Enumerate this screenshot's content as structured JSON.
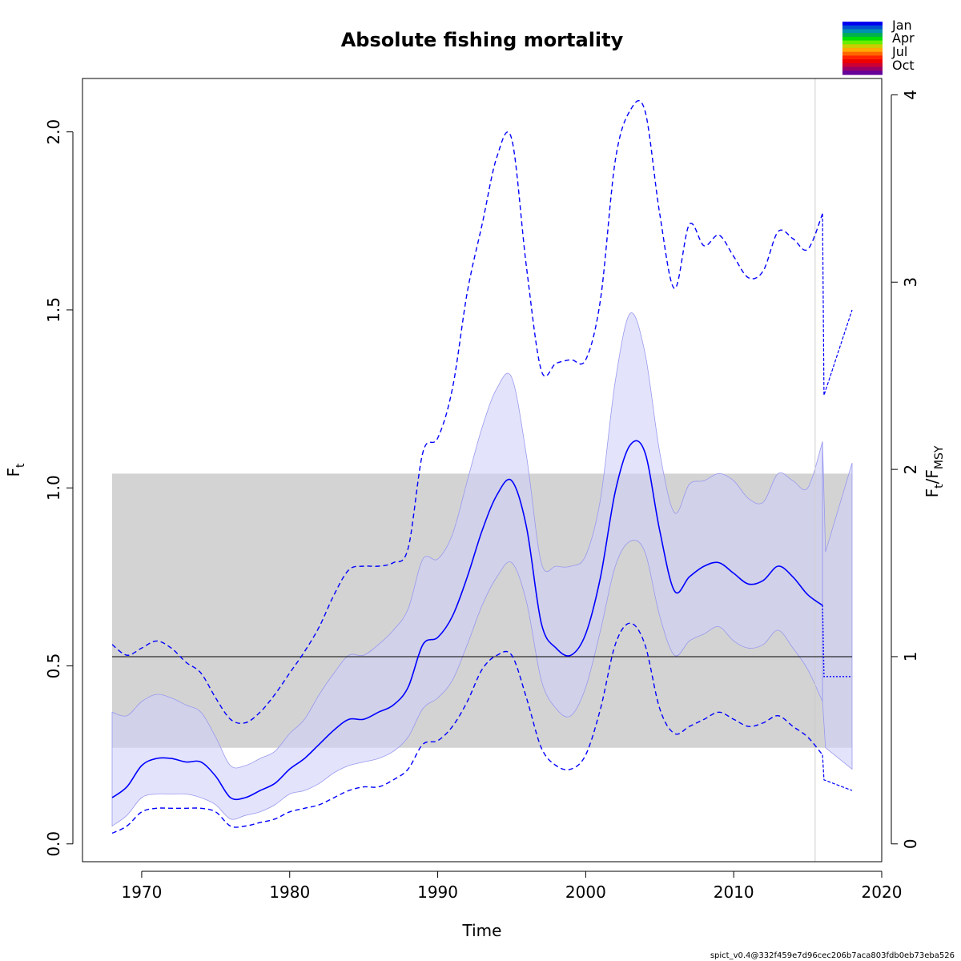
{
  "chart_data": {
    "type": "line",
    "title": "Absolute fishing mortality",
    "xlabel": "Time",
    "ylabel_main": "F",
    "ylabel_main_sub": "t",
    "ylabel_right_num": "F",
    "ylabel_right_num_sub": "t",
    "ylabel_right_sep": "/",
    "ylabel_right_den": "F",
    "ylabel_right_den_sub": "MSY",
    "xlim": [
      1966,
      2020
    ],
    "ylim": [
      -0.05,
      2.15
    ],
    "x_ticks": [
      1970,
      1980,
      1990,
      2000,
      2010,
      2020
    ],
    "y_ticks": [
      0.0,
      0.5,
      1.0,
      1.5,
      2.0
    ],
    "y_tick_labels": [
      "0.0",
      "0.5",
      "1.0",
      "1.5",
      "2.0"
    ],
    "right_ticks": [
      0,
      1,
      2,
      3,
      4
    ],
    "right_tick_labels": [
      "0",
      "1",
      "2",
      "3",
      "4"
    ],
    "fmsy": 0.526,
    "fmsy_band": {
      "x_start": 1968,
      "x_end": 2018,
      "lower": 0.27,
      "upper": 1.04
    },
    "last_obs_time": 2015.5,
    "colors": {
      "estimate": "#0000ff",
      "ci_fill": "#d0d0fa",
      "fmsy_band": "#d3d3d3",
      "fmsy_line": "#000000",
      "vline": "#cccccc"
    },
    "legend": {
      "labels": [
        "Jan",
        "Apr",
        "Jul",
        "Oct"
      ],
      "colors": [
        "#0000ee",
        "#0050d0",
        "#0090b0",
        "#00b050",
        "#00dd00",
        "#66ee00",
        "#cccc00",
        "#ffaa00",
        "#ff6600",
        "#ff2200",
        "#ee0000",
        "#cc0033",
        "#990066",
        "#660099"
      ]
    },
    "series": [
      {
        "name": "F estimate",
        "x": [
          1968,
          1969,
          1970,
          1971,
          1972,
          1973,
          1974,
          1975,
          1976,
          1977,
          1978,
          1979,
          1980,
          1981,
          1982,
          1983,
          1984,
          1985,
          1986,
          1987,
          1988,
          1989,
          1990,
          1991,
          1992,
          1993,
          1994,
          1995,
          1996,
          1997,
          1998,
          1999,
          2000,
          2001,
          2002,
          2003,
          2004,
          2005,
          2006,
          2007,
          2008,
          2009,
          2010,
          2011,
          2012,
          2013,
          2014,
          2015,
          2016
        ],
        "y": [
          0.13,
          0.16,
          0.22,
          0.24,
          0.24,
          0.23,
          0.23,
          0.19,
          0.13,
          0.13,
          0.15,
          0.17,
          0.21,
          0.24,
          0.28,
          0.32,
          0.35,
          0.35,
          0.37,
          0.39,
          0.44,
          0.56,
          0.58,
          0.64,
          0.75,
          0.88,
          0.98,
          1.02,
          0.89,
          0.62,
          0.55,
          0.53,
          0.59,
          0.75,
          0.99,
          1.12,
          1.1,
          0.88,
          0.71,
          0.75,
          0.78,
          0.79,
          0.76,
          0.73,
          0.74,
          0.78,
          0.75,
          0.7,
          0.67
        ]
      },
      {
        "name": "95% CI lower",
        "x": [
          1968,
          1969,
          1970,
          1971,
          1972,
          1973,
          1974,
          1975,
          1976,
          1977,
          1978,
          1979,
          1980,
          1981,
          1982,
          1983,
          1984,
          1985,
          1986,
          1987,
          1988,
          1989,
          1990,
          1991,
          1992,
          1993,
          1994,
          1995,
          1996,
          1997,
          1998,
          1999,
          2000,
          2001,
          2002,
          2003,
          2004,
          2005,
          2006,
          2007,
          2008,
          2009,
          2010,
          2011,
          2012,
          2013,
          2014,
          2015,
          2016
        ],
        "y": [
          0.05,
          0.08,
          0.13,
          0.14,
          0.14,
          0.14,
          0.13,
          0.11,
          0.07,
          0.08,
          0.09,
          0.11,
          0.14,
          0.15,
          0.17,
          0.2,
          0.22,
          0.23,
          0.24,
          0.26,
          0.3,
          0.38,
          0.41,
          0.46,
          0.56,
          0.67,
          0.75,
          0.79,
          0.68,
          0.46,
          0.38,
          0.36,
          0.44,
          0.6,
          0.78,
          0.85,
          0.82,
          0.64,
          0.53,
          0.57,
          0.59,
          0.61,
          0.57,
          0.55,
          0.56,
          0.6,
          0.55,
          0.49,
          0.4
        ]
      },
      {
        "name": "95% CI upper",
        "x": [
          1968,
          1969,
          1970,
          1971,
          1972,
          1973,
          1974,
          1975,
          1976,
          1977,
          1978,
          1979,
          1980,
          1981,
          1982,
          1983,
          1984,
          1985,
          1986,
          1987,
          1988,
          1989,
          1990,
          1991,
          1992,
          1993,
          1994,
          1995,
          1996,
          1997,
          1998,
          1999,
          2000,
          2001,
          2002,
          2003,
          2004,
          2005,
          2006,
          2007,
          2008,
          2009,
          2010,
          2011,
          2012,
          2013,
          2014,
          2015,
          2016
        ],
        "y": [
          0.37,
          0.36,
          0.4,
          0.42,
          0.41,
          0.39,
          0.37,
          0.3,
          0.22,
          0.22,
          0.24,
          0.26,
          0.31,
          0.35,
          0.42,
          0.48,
          0.53,
          0.53,
          0.56,
          0.6,
          0.66,
          0.8,
          0.8,
          0.87,
          1.02,
          1.17,
          1.28,
          1.31,
          1.09,
          0.79,
          0.78,
          0.78,
          0.81,
          0.97,
          1.3,
          1.49,
          1.38,
          1.1,
          0.93,
          1.01,
          1.02,
          1.04,
          1.02,
          0.97,
          0.96,
          1.04,
          1.02,
          1.0,
          1.13
        ]
      },
      {
        "name": "Observation-error CI upper (dashed)",
        "x": [
          1968,
          1969,
          1970,
          1971,
          1972,
          1973,
          1974,
          1975,
          1976,
          1977,
          1978,
          1979,
          1980,
          1981,
          1982,
          1983,
          1984,
          1985,
          1986,
          1987,
          1988,
          1989,
          1990,
          1991,
          1992,
          1993,
          1994,
          1995,
          1996,
          1997,
          1998,
          1999,
          2000,
          2001,
          2002,
          2003,
          2004,
          2005,
          2006,
          2007,
          2008,
          2009,
          2010,
          2011,
          2012,
          2013,
          2014,
          2015,
          2016
        ],
        "y": [
          0.56,
          0.53,
          0.55,
          0.57,
          0.55,
          0.51,
          0.48,
          0.41,
          0.35,
          0.34,
          0.37,
          0.42,
          0.48,
          0.54,
          0.61,
          0.7,
          0.77,
          0.78,
          0.78,
          0.79,
          0.83,
          1.1,
          1.14,
          1.28,
          1.55,
          1.74,
          1.93,
          1.98,
          1.62,
          1.33,
          1.35,
          1.36,
          1.36,
          1.53,
          1.92,
          2.06,
          2.06,
          1.77,
          1.56,
          1.74,
          1.68,
          1.71,
          1.65,
          1.59,
          1.61,
          1.72,
          1.7,
          1.67,
          1.77
        ]
      },
      {
        "name": "Observation-error CI lower (dashed)",
        "x": [
          1968,
          1969,
          1970,
          1971,
          1972,
          1973,
          1974,
          1975,
          1976,
          1977,
          1978,
          1979,
          1980,
          1981,
          1982,
          1983,
          1984,
          1985,
          1986,
          1987,
          1988,
          1989,
          1990,
          1991,
          1992,
          1993,
          1994,
          1995,
          1996,
          1997,
          1998,
          1999,
          2000,
          2001,
          2002,
          2003,
          2004,
          2005,
          2006,
          2007,
          2008,
          2009,
          2010,
          2011,
          2012,
          2013,
          2014,
          2015,
          2016
        ],
        "y": [
          0.03,
          0.05,
          0.09,
          0.1,
          0.1,
          0.1,
          0.1,
          0.09,
          0.05,
          0.05,
          0.06,
          0.07,
          0.09,
          0.1,
          0.11,
          0.13,
          0.15,
          0.16,
          0.16,
          0.18,
          0.21,
          0.28,
          0.29,
          0.33,
          0.4,
          0.49,
          0.53,
          0.53,
          0.41,
          0.27,
          0.22,
          0.21,
          0.25,
          0.38,
          0.56,
          0.62,
          0.56,
          0.38,
          0.31,
          0.33,
          0.35,
          0.37,
          0.35,
          0.33,
          0.34,
          0.36,
          0.33,
          0.3,
          0.25
        ]
      },
      {
        "name": "F prediction",
        "x": [
          2016,
          2016.1,
          2018
        ],
        "y": [
          0.67,
          0.47,
          0.47
        ]
      },
      {
        "name": "Prediction CI lower",
        "x": [
          2016,
          2016.2,
          2018
        ],
        "y": [
          0.4,
          0.27,
          0.21
        ]
      },
      {
        "name": "Prediction CI upper",
        "x": [
          2016,
          2016.2,
          2018
        ],
        "y": [
          1.13,
          0.82,
          1.07
        ]
      },
      {
        "name": "Prediction obs-CI upper (dashed)",
        "x": [
          2016,
          2016.1,
          2018
        ],
        "y": [
          1.77,
          1.26,
          1.5
        ]
      },
      {
        "name": "Prediction obs-CI lower (dashed)",
        "x": [
          2016,
          2016.1,
          2018
        ],
        "y": [
          0.25,
          0.18,
          0.15
        ]
      }
    ]
  },
  "footer": {
    "version": "spict_v0.4@332f459e7d96cec206b7aca803fdb0eb73eba526"
  }
}
